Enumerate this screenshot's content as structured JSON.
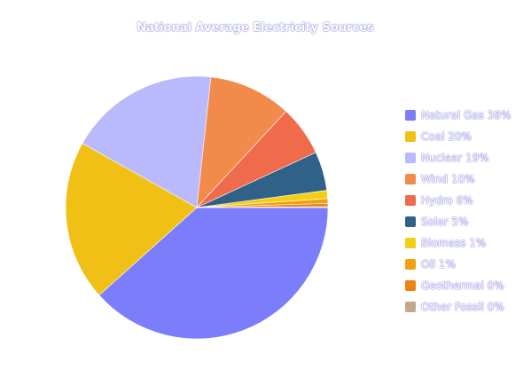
{
  "chart_data": {
    "type": "pie",
    "title": "National Average Electricity Sources",
    "legend_position": "right",
    "slices": [
      {
        "label": "Natural Gas 38%",
        "name": "Natural Gas",
        "value": 38.4,
        "color": "#7b7dfb"
      },
      {
        "label": "Coal 20%",
        "name": "Coal",
        "value": 19.8,
        "color": "#f1c016"
      },
      {
        "label": "Nuclear 19%",
        "name": "Nuclear",
        "value": 18.6,
        "color": "#b9b9fb"
      },
      {
        "label": "Wind 10%",
        "name": "Wind",
        "value": 10.2,
        "color": "#f28a4c"
      },
      {
        "label": "Hydro 6%",
        "name": "Hydro",
        "value": 6.2,
        "color": "#f06a4c"
      },
      {
        "label": "Solar 5%",
        "name": "Solar",
        "value": 4.8,
        "color": "#2f6189"
      },
      {
        "label": "Biomass 1%",
        "name": "Biomass",
        "value": 1.0,
        "color": "#f3cf14"
      },
      {
        "label": "Oil 1%",
        "name": "Oil",
        "value": 0.6,
        "color": "#f3a012"
      },
      {
        "label": "Geothermal 0%",
        "name": "Geothermal",
        "value": 0.4,
        "color": "#ec8312"
      },
      {
        "label": "Other Fossil 0%",
        "name": "Other Fossil",
        "value": 0.1,
        "color": "#c3a78f"
      }
    ]
  }
}
